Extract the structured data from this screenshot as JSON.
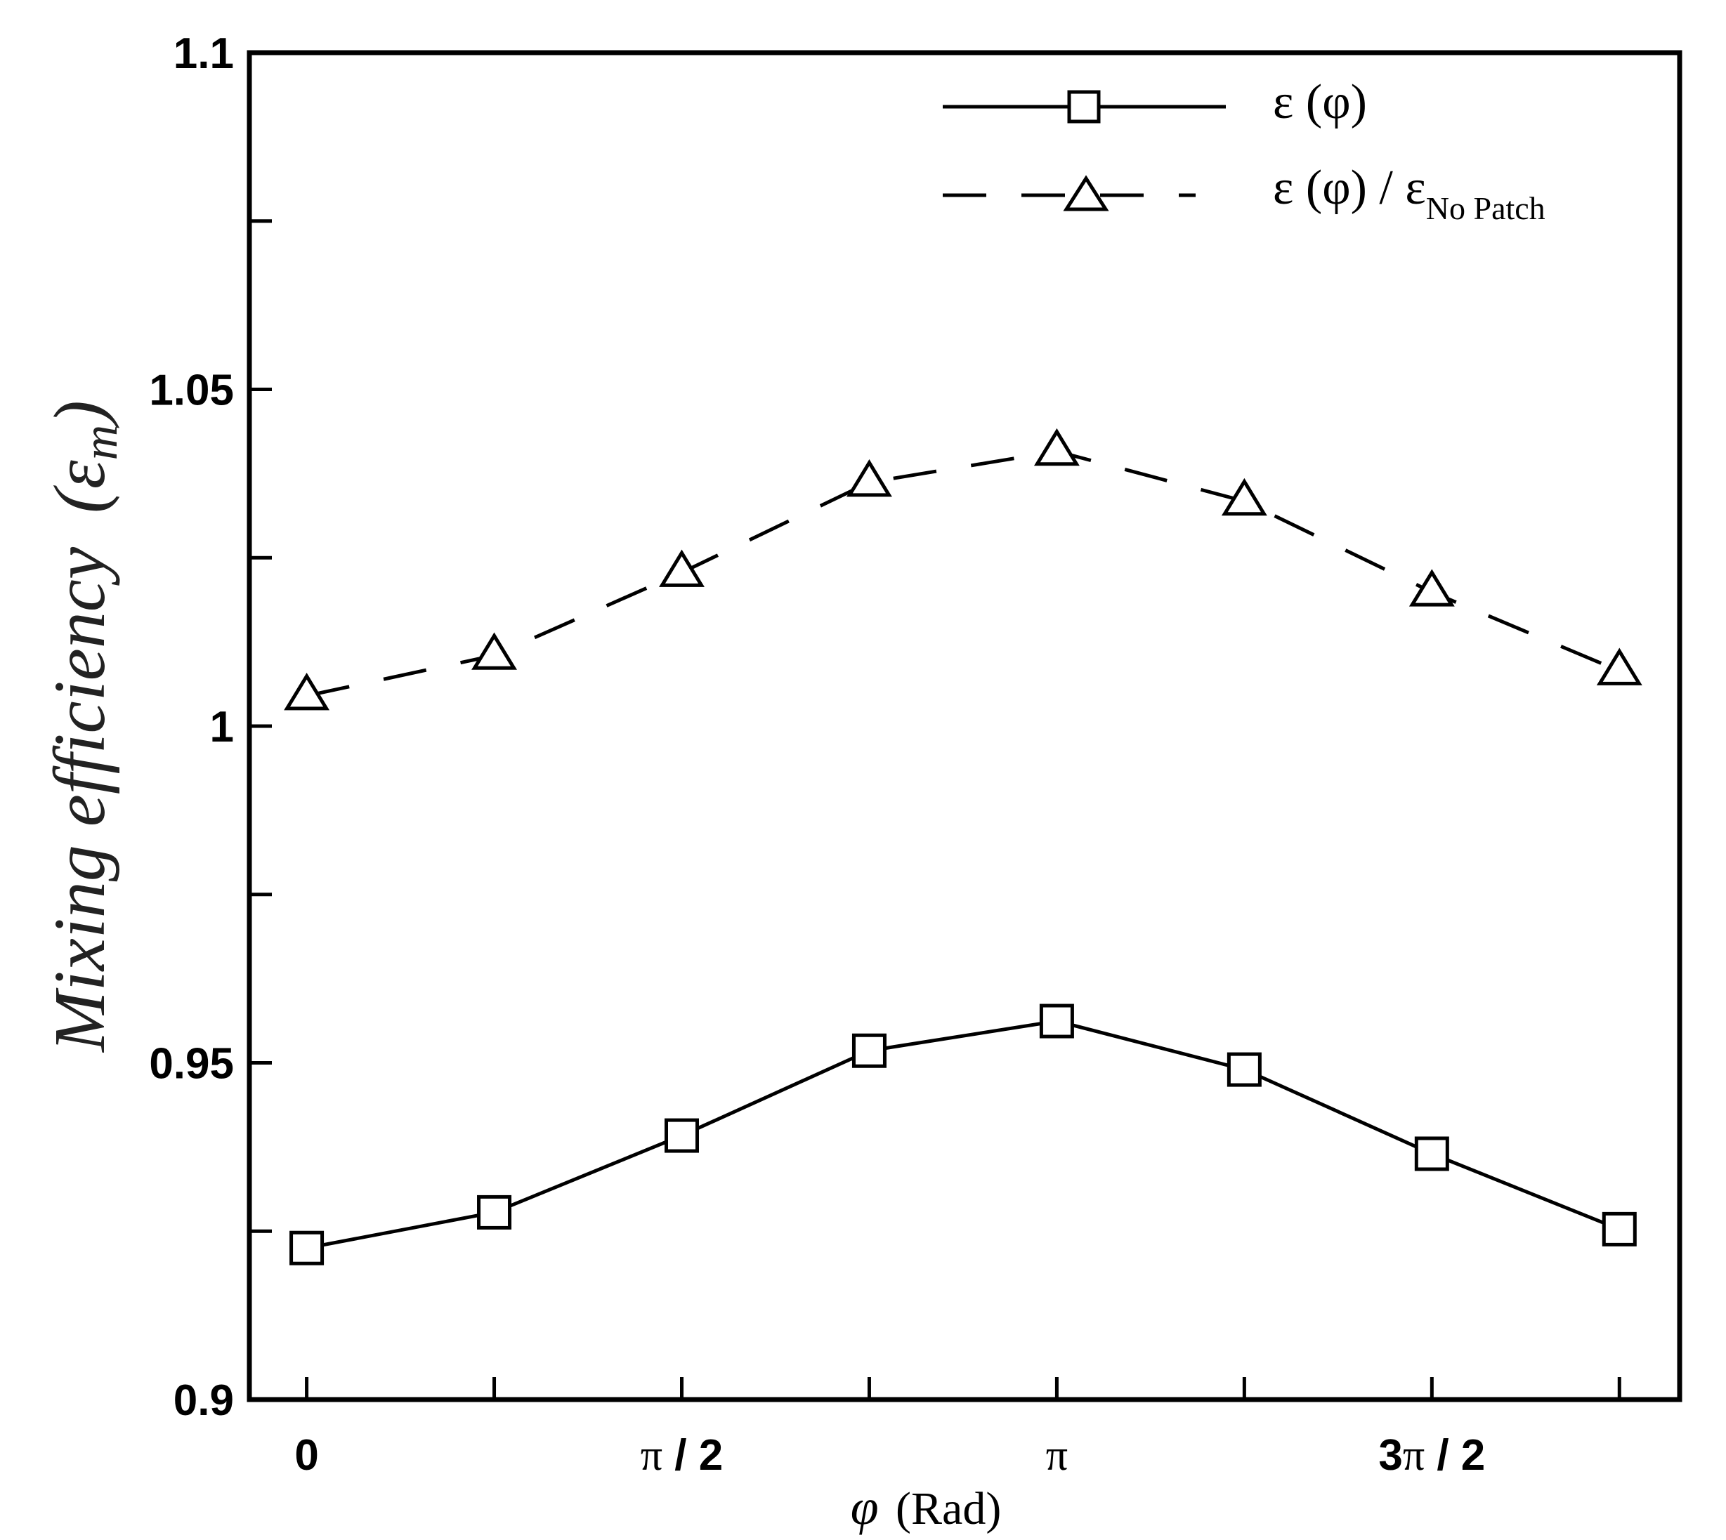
{
  "chart_data": {
    "type": "line",
    "title": "",
    "xlabel": {
      "symbol": "φ",
      "unit": "(Rad)"
    },
    "ylabel": {
      "text": "Mixing efficiency",
      "symbol": "(ε",
      "sub": "m",
      "close": ")"
    },
    "x": [
      0,
      0.7854,
      1.5708,
      2.3562,
      3.1416,
      3.927,
      4.7124,
      5.4978
    ],
    "xlim": [
      -0.24,
      5.75
    ],
    "ylim": [
      0.9,
      1.1
    ],
    "yticks": [
      {
        "value": 0.9,
        "label": "0.9"
      },
      {
        "value": 0.95,
        "label": "0.95"
      },
      {
        "value": 1.0,
        "label": "1"
      },
      {
        "value": 1.05,
        "label": "1.05"
      },
      {
        "value": 1.1,
        "label": "1.1"
      }
    ],
    "yminor": [
      0.925,
      0.975,
      1.025,
      1.075
    ],
    "xticks": [
      0,
      0.7854,
      1.5708,
      2.3562,
      3.1416,
      3.927,
      4.7124,
      5.4978
    ],
    "xticklabels": [
      {
        "value": 0,
        "pre": "",
        "pi": "",
        "post": "0"
      },
      {
        "value": 1.5708,
        "pre": "",
        "pi": "π",
        "post": " / 2"
      },
      {
        "value": 3.1416,
        "pre": "",
        "pi": "π",
        "post": ""
      },
      {
        "value": 4.7124,
        "pre": "3",
        "pi": "π",
        "post": " / 2"
      }
    ],
    "series": [
      {
        "name": "ε (φ)",
        "marker": "square",
        "line": "solid",
        "values": [
          0.9225,
          0.9278,
          0.9392,
          0.9518,
          0.9562,
          0.949,
          0.9365,
          0.9253
        ]
      },
      {
        "name": "ε (φ) / ε",
        "name_sub": "No Patch",
        "marker": "triangle",
        "line": "dashed",
        "values": [
          1.0045,
          1.0105,
          1.0228,
          1.0362,
          1.0408,
          1.0334,
          1.0199,
          1.0082
        ]
      }
    ],
    "legend": "top-right",
    "grid": false
  }
}
